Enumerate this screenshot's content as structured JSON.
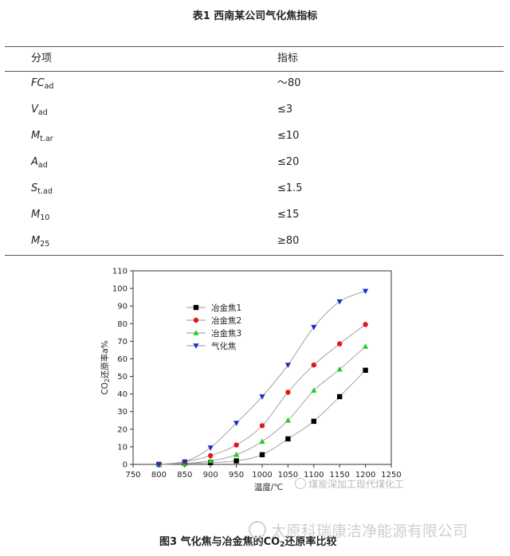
{
  "table": {
    "title": "表1  西南某公司气化焦指标",
    "headers": [
      "分项",
      "指标"
    ],
    "rows": [
      {
        "sym": "FC",
        "sub": "ad",
        "value": "～80"
      },
      {
        "sym": "V",
        "sub": "ad",
        "value": "≤3"
      },
      {
        "sym": "M",
        "sub": "t.ar",
        "value": "≤10"
      },
      {
        "sym": "A",
        "sub": "ad",
        "value": "≤20"
      },
      {
        "sym": "S",
        "sub": "t.ad",
        "value": "≤1.5"
      },
      {
        "sym": "M",
        "sub": "10",
        "value": "≤15"
      },
      {
        "sym": "M",
        "sub": "25",
        "value": "≥80"
      }
    ]
  },
  "figure": {
    "caption_pre": "图3 气化焦与冶金焦的CO",
    "caption_sub": "2",
    "caption_post": "还原率比较"
  },
  "watermarks": {
    "wm1": "煤炭深加工现代煤化工",
    "wm2": "太原科瑞康洁净能源有限公司"
  },
  "chart_data": {
    "type": "line",
    "xlabel": "温度/℃",
    "ylabel_pre": "CO",
    "ylabel_sub": "2",
    "ylabel_post": "还原率a%",
    "xlim": [
      750,
      1250
    ],
    "ylim": [
      0,
      110
    ],
    "xticks": [
      750,
      800,
      850,
      900,
      950,
      1000,
      1050,
      1100,
      1150,
      1200,
      1250
    ],
    "yticks": [
      0,
      10,
      20,
      30,
      40,
      50,
      60,
      70,
      80,
      90,
      100,
      110
    ],
    "legend_position": "upper-left",
    "series": [
      {
        "name": "冶金焦1",
        "color": "#000000",
        "marker": "square",
        "x": [
          800,
          850,
          900,
          950,
          1000,
          1050,
          1100,
          1150,
          1200
        ],
        "y": [
          0,
          0.5,
          1,
          2,
          5.5,
          14.5,
          24.5,
          38.5,
          53.5
        ]
      },
      {
        "name": "冶金焦2",
        "color": "#e01818",
        "marker": "circle",
        "x": [
          800,
          850,
          900,
          950,
          1000,
          1050,
          1100,
          1150,
          1200
        ],
        "y": [
          0,
          1.5,
          5,
          11,
          22,
          41,
          56.5,
          68.5,
          79.5
        ]
      },
      {
        "name": "冶金焦3",
        "color": "#22cc22",
        "marker": "triangle-up",
        "x": [
          800,
          850,
          900,
          950,
          1000,
          1050,
          1100,
          1150,
          1200
        ],
        "y": [
          0,
          0.5,
          2,
          5.5,
          13,
          25,
          42,
          54,
          67
        ]
      },
      {
        "name": "气化焦",
        "color": "#1a2ccc",
        "marker": "triangle-down",
        "x": [
          800,
          850,
          900,
          950,
          1000,
          1050,
          1100,
          1150,
          1200
        ],
        "y": [
          0,
          1.5,
          9.5,
          23.5,
          38.5,
          56.5,
          78,
          92.5,
          98.5
        ]
      }
    ]
  }
}
